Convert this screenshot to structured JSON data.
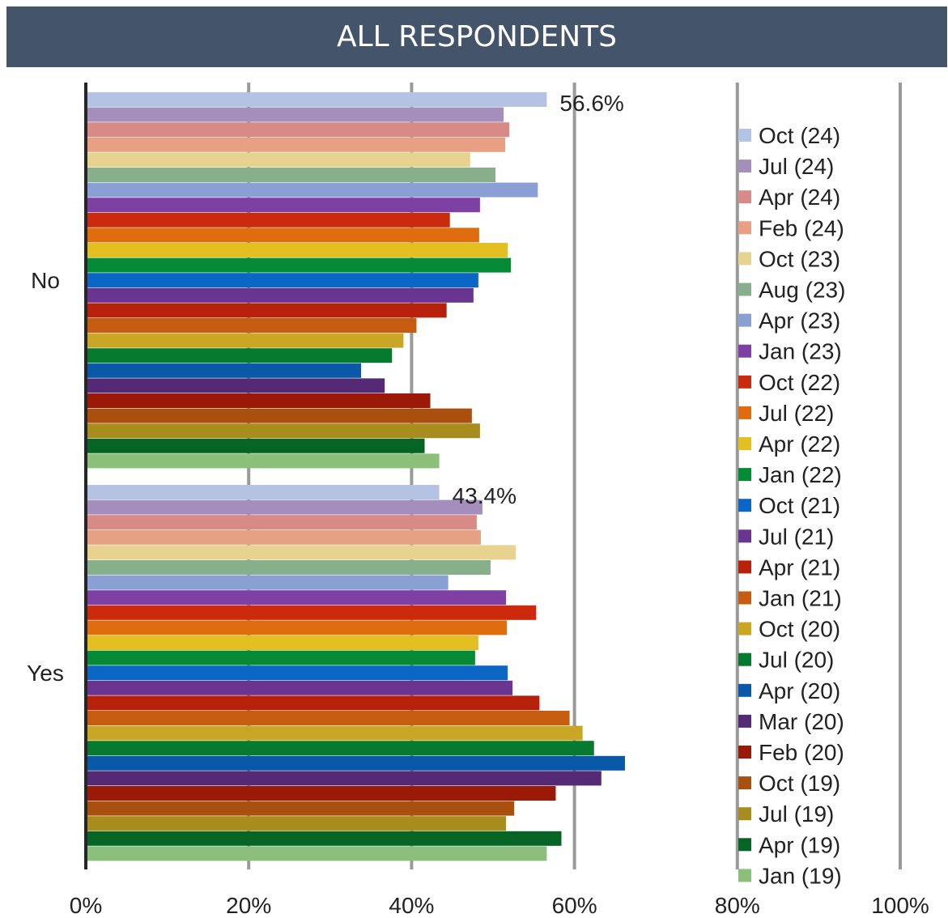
{
  "chart_data": {
    "type": "bar",
    "orientation": "horizontal",
    "title": "ALL RESPONDENTS",
    "xlabel": "",
    "ylabel": "",
    "xlim": [
      0,
      100
    ],
    "x_ticks": [
      "0%",
      "20%",
      "40%",
      "60%",
      "80%",
      "100%"
    ],
    "categories": [
      "No",
      "Yes"
    ],
    "legend_placement": "right",
    "grid": true,
    "series": [
      {
        "name": "Oct (24)",
        "color": "#b4c3e3",
        "values": [
          56.6,
          43.4
        ]
      },
      {
        "name": "Jul (24)",
        "color": "#a48fbc",
        "values": [
          51.3,
          48.7
        ]
      },
      {
        "name": "Apr (24)",
        "color": "#d88a86",
        "values": [
          52.0,
          48.0
        ]
      },
      {
        "name": "Feb (24)",
        "color": "#e8a085",
        "values": [
          51.5,
          48.5
        ]
      },
      {
        "name": "Oct (23)",
        "color": "#e7d38f",
        "values": [
          47.2,
          52.8
        ]
      },
      {
        "name": "Aug (23)",
        "color": "#87af8b",
        "values": [
          50.3,
          49.7
        ]
      },
      {
        "name": "Apr (23)",
        "color": "#8aa0d5",
        "values": [
          55.5,
          44.5
        ]
      },
      {
        "name": "Jan (23)",
        "color": "#7e40a3",
        "values": [
          48.4,
          51.6
        ]
      },
      {
        "name": "Oct (22)",
        "color": "#cc2a0c",
        "values": [
          44.7,
          55.3
        ]
      },
      {
        "name": "Jul (22)",
        "color": "#e06c10",
        "values": [
          48.3,
          51.7
        ]
      },
      {
        "name": "Apr (22)",
        "color": "#e3bf22",
        "values": [
          51.8,
          48.2
        ]
      },
      {
        "name": "Jan (22)",
        "color": "#058a36",
        "values": [
          52.2,
          47.8
        ]
      },
      {
        "name": "Oct (21)",
        "color": "#0a67c5",
        "values": [
          48.2,
          51.8
        ]
      },
      {
        "name": "Jul (21)",
        "color": "#6a3590",
        "values": [
          47.6,
          52.4
        ]
      },
      {
        "name": "Apr (21)",
        "color": "#b7200a",
        "values": [
          44.3,
          55.7
        ]
      },
      {
        "name": "Jan (21)",
        "color": "#c55c10",
        "values": [
          40.6,
          59.4
        ]
      },
      {
        "name": "Oct (20)",
        "color": "#c9a624",
        "values": [
          39.0,
          61.0
        ]
      },
      {
        "name": "Jul (20)",
        "color": "#067a2e",
        "values": [
          37.6,
          62.4
        ]
      },
      {
        "name": "Apr (20)",
        "color": "#0959a8",
        "values": [
          33.8,
          66.2
        ]
      },
      {
        "name": "Mar (20)",
        "color": "#552a74",
        "values": [
          36.7,
          63.3
        ]
      },
      {
        "name": "Feb (20)",
        "color": "#9a1a07",
        "values": [
          42.3,
          57.7
        ]
      },
      {
        "name": "Oct (19)",
        "color": "#a9500e",
        "values": [
          47.4,
          52.6
        ]
      },
      {
        "name": "Jul (19)",
        "color": "#a88c1e",
        "values": [
          48.4,
          51.6
        ]
      },
      {
        "name": "Apr (19)",
        "color": "#066424",
        "values": [
          41.6,
          58.4
        ]
      },
      {
        "name": "Jan (19)",
        "color": "#8cc07a",
        "values": [
          43.4,
          56.6
        ]
      }
    ],
    "data_labels": [
      {
        "text": "56.6%",
        "series": 0,
        "category": 0
      },
      {
        "text": "43.4%",
        "series": 0,
        "category": 1
      }
    ]
  }
}
